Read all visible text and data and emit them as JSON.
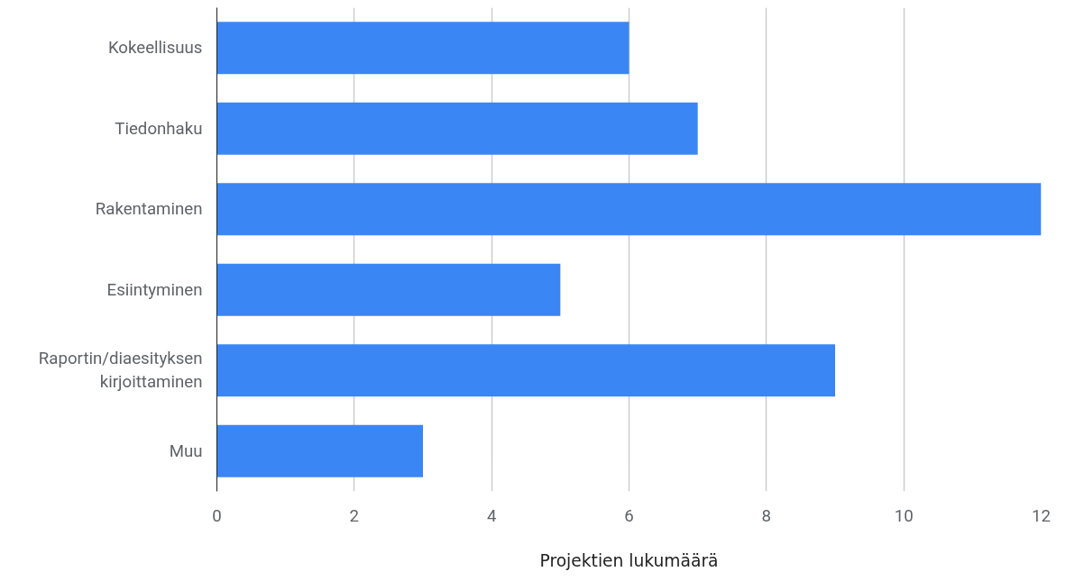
{
  "chart_data": {
    "type": "bar",
    "orientation": "horizontal",
    "xlabel": "Projektien lukumäärä",
    "categories": [
      "Kokeellisuus",
      "Tiedonhaku",
      "Rakentaminen",
      "Esiintyminen",
      "Raportin/diaesityksen\nkirjoittaminen",
      "Muu"
    ],
    "values": [
      6,
      7,
      12,
      5,
      9,
      3
    ],
    "color": "#3a86f5",
    "xlim": [
      0,
      12
    ],
    "xticks": [
      0,
      2,
      4,
      6,
      8,
      10,
      12
    ],
    "grid": "x"
  }
}
